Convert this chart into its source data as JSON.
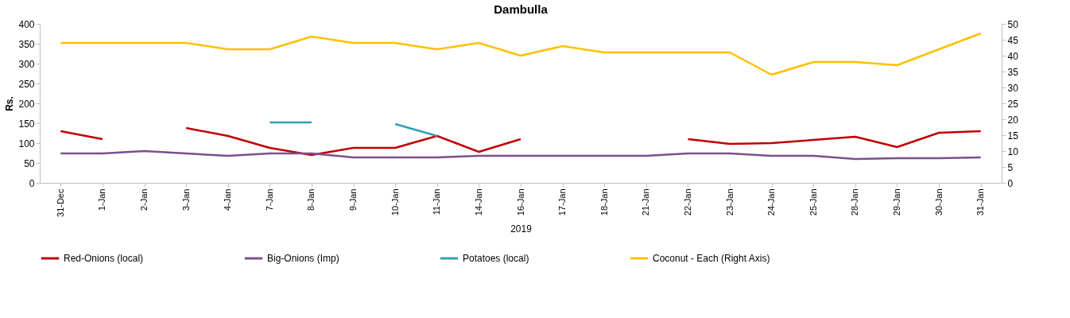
{
  "chart_data": {
    "type": "line",
    "title": "Dambulla",
    "ylabel": "Rs.",
    "annotations": [
      "2019"
    ],
    "categories": [
      "31-Dec",
      "1-Jan",
      "2-Jan",
      "3-Jan",
      "4-Jan",
      "7-Jan",
      "8-Jan",
      "9-Jan",
      "10-Jan",
      "11-Jan",
      "14-Jan",
      "16-Jan",
      "17-Jan",
      "18-Jan",
      "21-Jan",
      "22-Jan",
      "23-Jan",
      "24-Jan",
      "25-Jan",
      "28-Jan",
      "29-Jan",
      "30-Jan",
      "31-Jan"
    ],
    "series": [
      {
        "name": "Red-Onions (local)",
        "color": "#c00000",
        "values": [
          130,
          110,
          null,
          138,
          118,
          88,
          70,
          88,
          88,
          118,
          78,
          110,
          null,
          null,
          null,
          110,
          98,
          100,
          108,
          116,
          90,
          126,
          130
        ]
      },
      {
        "name": "Big-Onions (Imp)",
        "color": "#7b4f8e",
        "values": [
          74,
          74,
          80,
          74,
          68,
          74,
          74,
          64,
          64,
          64,
          68,
          68,
          68,
          68,
          68,
          74,
          74,
          68,
          68,
          60,
          62,
          62,
          64
        ]
      },
      {
        "name": "Potatoes (local)",
        "color": "#31a0b3",
        "values": [
          null,
          null,
          null,
          null,
          null,
          152,
          152,
          null,
          148,
          118,
          null,
          null,
          null,
          null,
          null,
          null,
          null,
          null,
          null,
          null,
          null,
          null,
          null
        ]
      },
      {
        "name": "Coconut - Each (Right Axis)",
        "color": "#ffc000",
        "axis": "y2",
        "values": [
          44,
          44,
          44,
          44,
          42,
          42,
          46,
          44,
          44,
          42,
          44,
          40,
          43,
          41,
          41,
          41,
          41,
          34,
          38,
          38,
          37,
          42,
          47
        ]
      }
    ],
    "ylim": [
      0,
      400
    ],
    "yticks": [
      0,
      50,
      100,
      150,
      200,
      250,
      300,
      350,
      400
    ],
    "y2lim": [
      0,
      50
    ],
    "y2ticks": [
      0,
      5,
      10,
      15,
      20,
      25,
      30,
      35,
      40,
      45,
      50
    ],
    "grid": false,
    "legend": "bottom",
    "marker": "none",
    "line_style": "solid"
  }
}
